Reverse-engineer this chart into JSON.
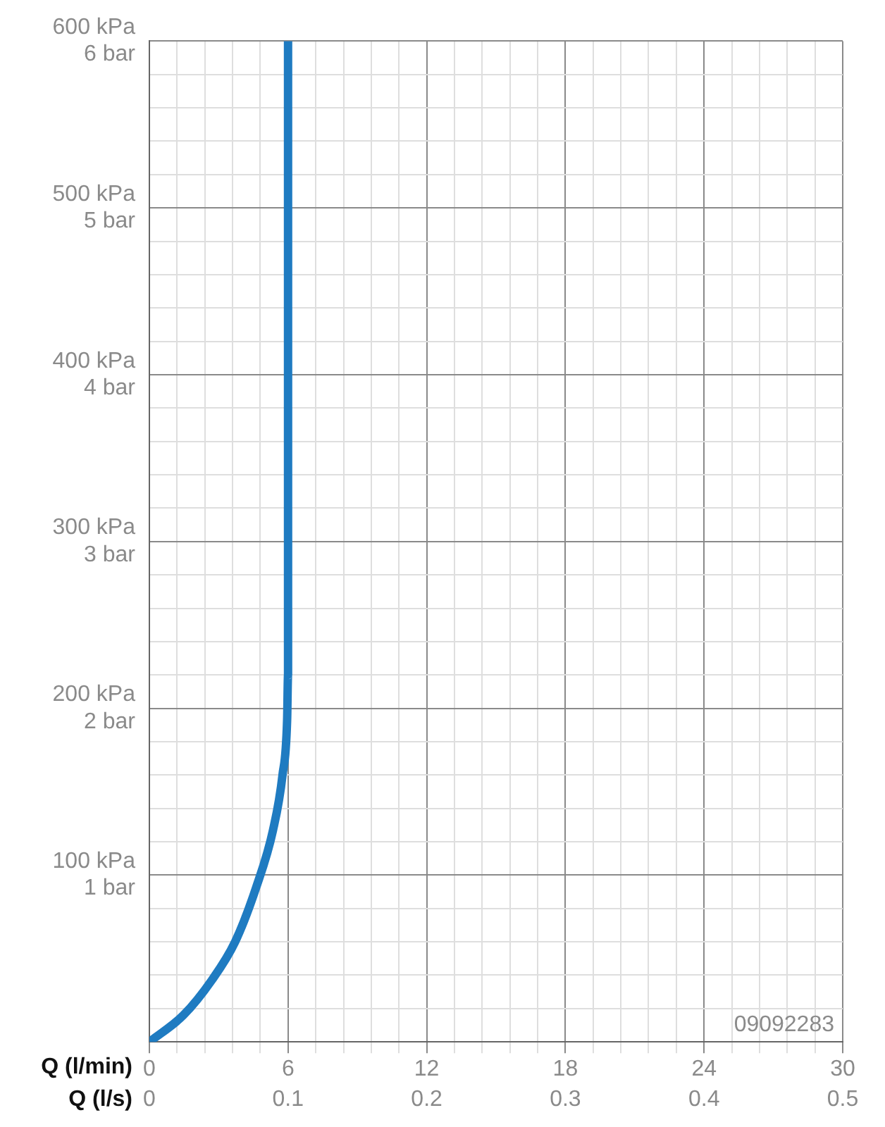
{
  "chart_data": {
    "type": "line",
    "xlabel": "Q (l/min)",
    "x2label": "Q (l/s)",
    "series": [
      {
        "color": "#1f7bc1",
        "x": [
          0,
          1.47,
          2.7,
          3.71,
          4.63,
          5.35,
          5.76,
          5.96,
          6,
          6
        ],
        "values": [
          0,
          16,
          37,
          60,
          93,
          127,
          160,
          193,
          220,
          600
        ]
      }
    ],
    "xlim": [
      0,
      30
    ],
    "xticks": [
      0,
      {
        "value": 1.2,
        "label": null
      },
      {
        "value": 2.4,
        "label": null
      },
      {
        "value": 3.6,
        "label": null
      },
      {
        "value": 4.8,
        "label": null
      },
      6,
      {
        "value": 7.2,
        "label": null
      },
      {
        "value": 8.4,
        "label": null
      },
      {
        "value": 9.6,
        "label": null
      },
      {
        "value": 10.8,
        "label": null
      },
      12,
      {
        "value": 13.2,
        "label": null
      },
      {
        "value": 14.4,
        "label": null
      },
      {
        "value": 15.6,
        "label": null
      },
      {
        "value": 16.8,
        "label": null
      },
      18,
      {
        "value": 19.2,
        "label": null
      },
      {
        "value": 20.4,
        "label": null
      },
      {
        "value": 21.6,
        "label": null
      },
      {
        "value": 22.8,
        "label": null
      },
      24,
      {
        "value": 25.2,
        "label": null
      },
      {
        "value": 26.4,
        "label": null
      },
      {
        "value": 27.6,
        "label": null
      },
      {
        "value": 28.8,
        "label": null
      },
      30
    ],
    "x2lim": [
      0,
      0.5
    ],
    "x2ticks": [
      0,
      0.1,
      0.2,
      0.3,
      0.4,
      0.5
    ],
    "ylim": [
      0,
      600
    ],
    "yticks": [
      {
        "value": 0,
        "label": null
      },
      {
        "value": 20,
        "label": null
      },
      {
        "value": 40,
        "label": null
      },
      {
        "value": 60,
        "label": null
      },
      {
        "value": 80,
        "label": null
      },
      {
        "value": 100,
        "label": "100 kPa"
      },
      {
        "value": 120,
        "label": null
      },
      {
        "value": 140,
        "label": null
      },
      {
        "value": 160,
        "label": null
      },
      {
        "value": 180,
        "label": null
      },
      {
        "value": 200,
        "label": "200 kPa"
      },
      {
        "value": 220,
        "label": null
      },
      {
        "value": 240,
        "label": null
      },
      {
        "value": 260,
        "label": null
      },
      {
        "value": 280,
        "label": null
      },
      {
        "value": 300,
        "label": "300 kPa"
      },
      {
        "value": 320,
        "label": null
      },
      {
        "value": 340,
        "label": null
      },
      {
        "value": 360,
        "label": null
      },
      {
        "value": 380,
        "label": null
      },
      {
        "value": 400,
        "label": "400 kPa"
      },
      {
        "value": 420,
        "label": null
      },
      {
        "value": 440,
        "label": null
      },
      {
        "value": 460,
        "label": null
      },
      {
        "value": 480,
        "label": null
      },
      {
        "value": 500,
        "label": "500 kPa"
      },
      {
        "value": 520,
        "label": null
      },
      {
        "value": 540,
        "label": null
      },
      {
        "value": 560,
        "label": null
      },
      {
        "value": 580,
        "label": null
      },
      {
        "value": 600,
        "label": "600 kPa"
      }
    ],
    "y2lim": [
      0,
      6
    ],
    "y2ticks": [
      {
        "value": 1,
        "label": "1 bar"
      },
      {
        "value": 2,
        "label": "2 bar"
      },
      {
        "value": 3,
        "label": "3 bar"
      },
      {
        "value": 4,
        "label": "4 bar"
      },
      {
        "value": 5,
        "label": "5 bar"
      },
      {
        "value": 6,
        "label": "6 bar"
      }
    ],
    "grid": true,
    "marker": "none",
    "line_style": "solid",
    "annotations": [
      "09092283"
    ]
  }
}
